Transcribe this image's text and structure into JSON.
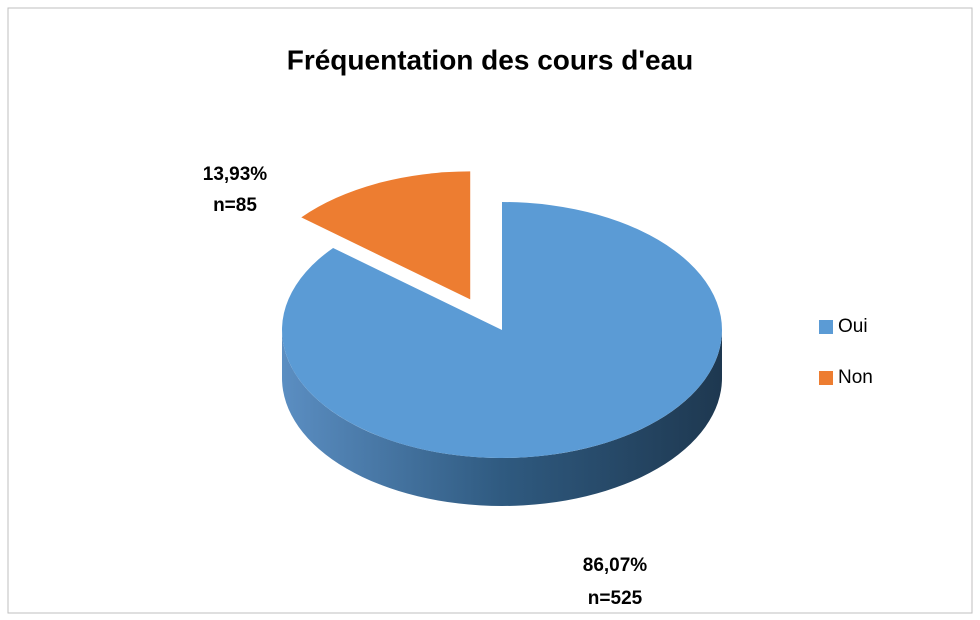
{
  "chart_data": {
    "type": "pie3d",
    "title": "Fréquentation des cours d'eau",
    "categories": [
      "Oui",
      "Non"
    ],
    "values": [
      86.07,
      13.93
    ],
    "value_labels": [
      "86,07%",
      "13,93%"
    ],
    "counts": [
      525,
      85
    ],
    "count_labels": [
      "n=525",
      "n=85"
    ],
    "colors": [
      "#5b9bd5",
      "#ed7d31"
    ],
    "legend": "right",
    "exploded": [
      false,
      true
    ]
  }
}
